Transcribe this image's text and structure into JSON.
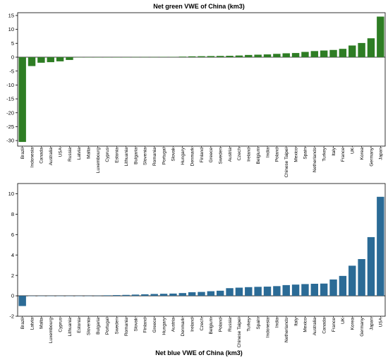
{
  "chart_data": [
    {
      "type": "bar",
      "title": "Net green VWE of China (km3)",
      "color": "#2e7d24",
      "ylim": [
        -32,
        16
      ],
      "yticks": [
        -30,
        -25,
        -20,
        -15,
        -10,
        -5,
        0,
        5,
        10,
        15
      ],
      "grid": false,
      "categories": [
        "Brazil",
        "Indonesia",
        "Canada",
        "Australia",
        "USA",
        "Russia",
        "Latvia",
        "Malta",
        "Luxembourg",
        "Cyprus",
        "Estonia",
        "Lithuania",
        "Bulgaria",
        "Slovenia",
        "Romania",
        "Portugal",
        "Slovak",
        "Hungary",
        "Denmark",
        "Finland",
        "Greece",
        "Sweden",
        "Austria",
        "Czech",
        "Ireland",
        "Belgium",
        "India",
        "Poland",
        "Chinese Taipei",
        "Mexico",
        "Spain",
        "Netherlands",
        "Turkey",
        "Italy",
        "France",
        "UK",
        "Korea",
        "Germany",
        "Japan"
      ],
      "values": [
        -30.5,
        -3.2,
        -2.0,
        -1.8,
        -1.5,
        -1.0,
        -0.05,
        -0.03,
        0.0,
        0.0,
        0.0,
        0.0,
        0.05,
        0.05,
        0.05,
        0.1,
        0.1,
        0.2,
        0.3,
        0.35,
        0.4,
        0.45,
        0.5,
        0.6,
        0.8,
        0.9,
        1.0,
        1.2,
        1.4,
        1.5,
        1.9,
        2.2,
        2.4,
        2.6,
        3.0,
        4.2,
        5.1,
        6.8,
        14.6
      ]
    },
    {
      "type": "bar",
      "title": "Net blue VWE of China (km3)",
      "color": "#2b6b96",
      "ylim": [
        -2,
        11
      ],
      "yticks": [
        -2,
        0,
        2,
        4,
        6,
        8,
        10
      ],
      "grid": false,
      "categories": [
        "Brazil",
        "Latvia",
        "Malta",
        "Luxembourg",
        "Cyprus",
        "Lithuania",
        "Estonia",
        "Slovenia",
        "Bulgaria",
        "Portugal",
        "Sweden",
        "Romania",
        "Slovak",
        "Finland",
        "Greece",
        "Hungary",
        "Austria",
        "Denmark",
        "Ireland",
        "Czech",
        "Belgium",
        "Poland",
        "Russia",
        "Chinese Taipei",
        "Turkey",
        "Spain",
        "Indonesia",
        "India",
        "Netherlands",
        "Italy",
        "Mexico",
        "Australia",
        "Canada",
        "France",
        "UK",
        "Korea",
        "Germany",
        "Japan",
        "USA"
      ],
      "values": [
        -1.0,
        0.0,
        0.0,
        0.0,
        0.0,
        0.0,
        0.0,
        0.01,
        0.02,
        0.05,
        0.07,
        0.09,
        0.12,
        0.15,
        0.18,
        0.2,
        0.22,
        0.27,
        0.35,
        0.38,
        0.45,
        0.5,
        0.75,
        0.8,
        0.85,
        0.88,
        0.9,
        0.95,
        1.05,
        1.1,
        1.15,
        1.18,
        1.2,
        1.6,
        1.95,
        2.95,
        3.6,
        5.75,
        9.7
      ]
    }
  ]
}
